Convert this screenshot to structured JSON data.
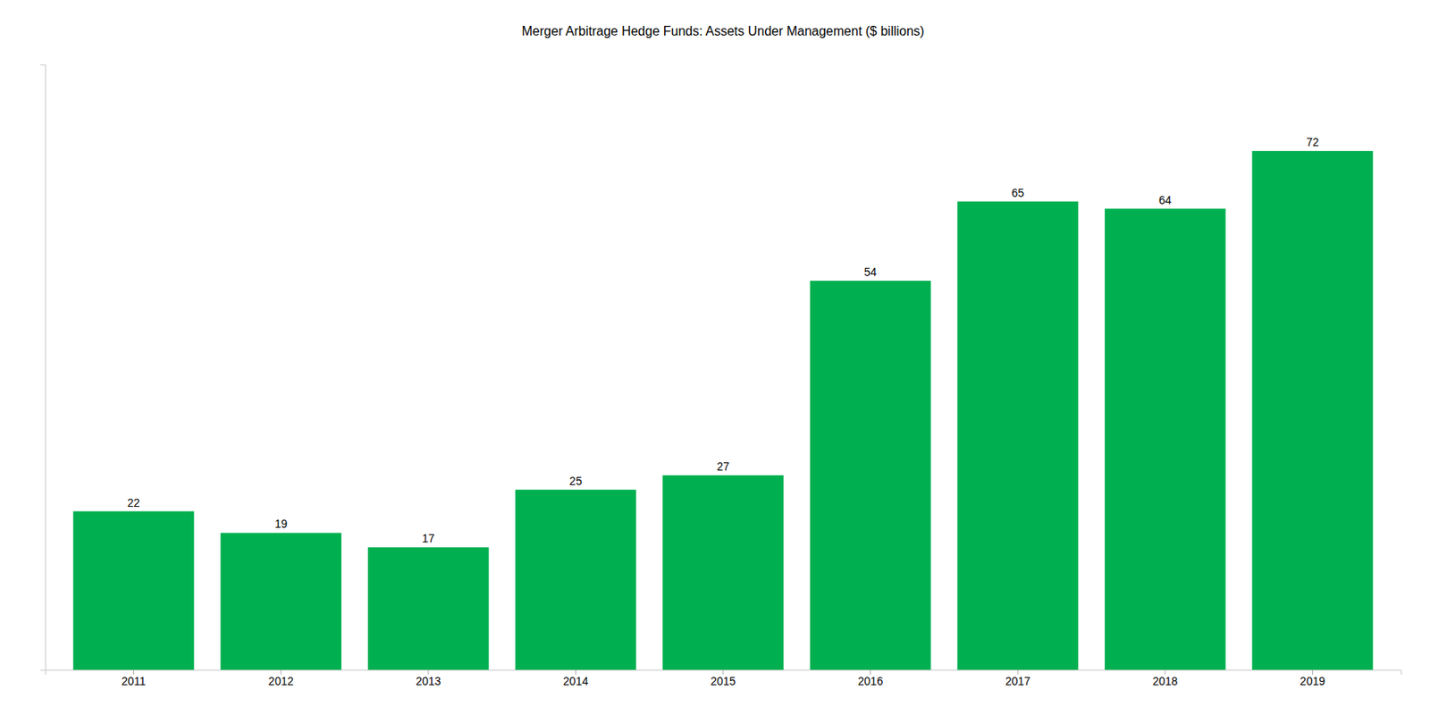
{
  "chart_data": {
    "type": "bar",
    "title": "Merger Arbitrage Hedge Funds: Assets Under Management ($ billions)",
    "categories": [
      "2011",
      "2012",
      "2013",
      "2014",
      "2015",
      "2016",
      "2017",
      "2018",
      "2019"
    ],
    "values": [
      22,
      19,
      17,
      25,
      27,
      54,
      65,
      64,
      72
    ],
    "color": "#00B050",
    "ylim": [
      0,
      84
    ],
    "grid": false,
    "data_labels": true,
    "tick_labels": "x"
  }
}
